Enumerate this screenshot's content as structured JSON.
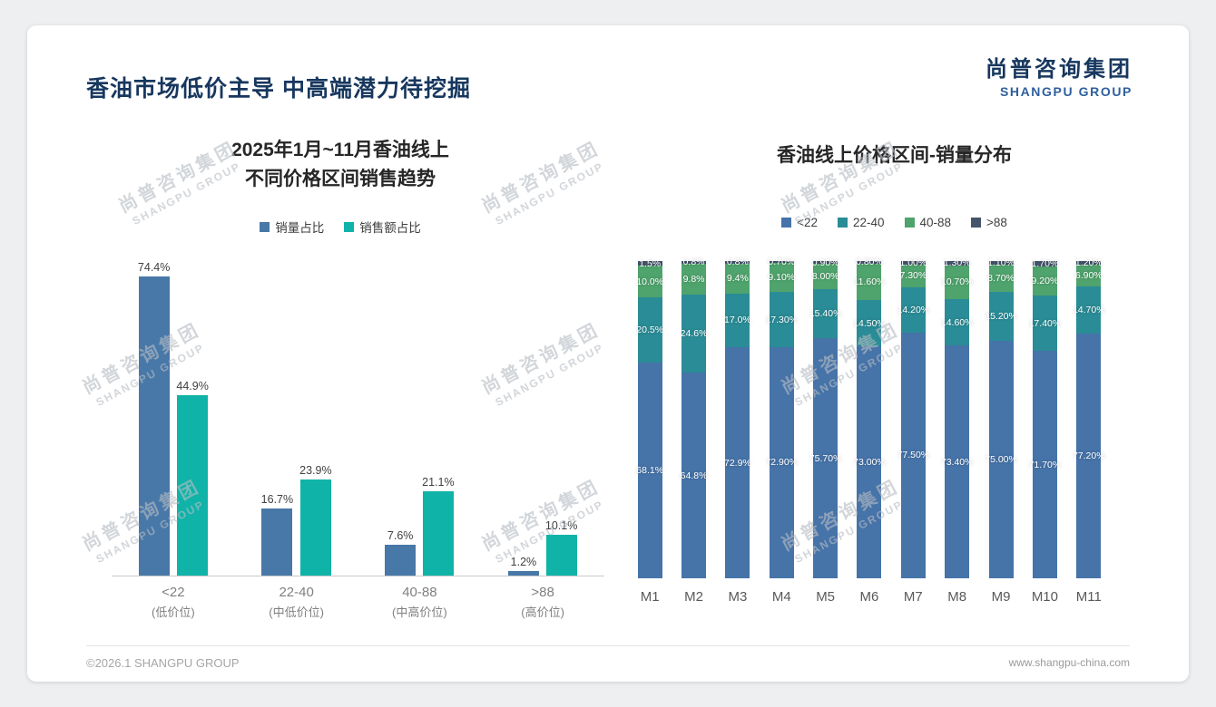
{
  "page": {
    "title": "香油市场低价主导 中高端潜力待挖掘",
    "logo": {
      "cn": "尚普咨询集团",
      "en": "SHANGPU GROUP"
    },
    "watermark": {
      "cn": "尚普咨询集团",
      "en": "SHANGPU GROUP"
    },
    "footer": {
      "left": "©2026.1 SHANGPU GROUP",
      "right": "www.shangpu-china.com"
    }
  },
  "chart_data": [
    {
      "type": "bar",
      "title": "2025年1月~11月香油线上 不同价格区间销售趋势",
      "title_lines": [
        "2025年1月~11月香油线上",
        "不同价格区间销售趋势"
      ],
      "categories": [
        [
          "<22",
          "(低价位)"
        ],
        [
          "22-40",
          "(中低价位)"
        ],
        [
          "40-88",
          "(中高价位)"
        ],
        [
          ">88",
          "(高价位)"
        ]
      ],
      "series": [
        {
          "name": "销量占比",
          "color": "#4878A8",
          "values": [
            74.4,
            16.7,
            7.6,
            1.2
          ],
          "labels": [
            "74.4%",
            "16.7%",
            "7.6%",
            "1.2%"
          ]
        },
        {
          "name": "销售额占比",
          "color": "#10B3A8",
          "values": [
            44.9,
            23.9,
            21.1,
            10.1
          ],
          "labels": [
            "44.9%",
            "23.9%",
            "21.1%",
            "10.1%"
          ]
        }
      ],
      "ylim": [
        0,
        80
      ],
      "grid": false,
      "legend_position": "top",
      "value_labels": true
    },
    {
      "type": "bar",
      "subtype": "stacked-100",
      "title": "香油线上价格区间-销量分布",
      "categories": [
        "M1",
        "M2",
        "M3",
        "M4",
        "M5",
        "M6",
        "M7",
        "M8",
        "M9",
        "M10",
        "M11"
      ],
      "series": [
        {
          "name": "<22",
          "color": "#4673A8",
          "values": [
            68.1,
            64.8,
            72.9,
            72.9,
            75.7,
            73.0,
            77.5,
            73.4,
            75.0,
            71.7,
            77.2
          ],
          "labels": [
            "68.1%",
            "64.8%",
            "72.9%",
            "72.90%",
            "75.70%",
            "73.00%",
            "77.50%",
            "73.40%",
            "75.00%",
            "71.70%",
            "77.20%"
          ]
        },
        {
          "name": "22-40",
          "color": "#2A8C96",
          "values": [
            20.5,
            24.6,
            17.0,
            17.3,
            15.4,
            14.5,
            14.2,
            14.6,
            15.2,
            17.4,
            14.7
          ],
          "labels": [
            "20.5%",
            "24.6%",
            "17.0%",
            "17.30%",
            "15.40%",
            "14.50%",
            "14.20%",
            "14.60%",
            "15.20%",
            "17.40%",
            "14.70%"
          ]
        },
        {
          "name": "40-88",
          "color": "#4FA36C",
          "values": [
            10.0,
            9.8,
            9.4,
            9.1,
            8.0,
            11.6,
            7.3,
            10.7,
            8.7,
            9.2,
            6.9
          ],
          "labels": [
            "10.0%",
            "9.8%",
            "9.4%",
            "9.10%",
            "8.00%",
            "11.60%",
            "7.30%",
            "10.70%",
            "8.70%",
            "9.20%",
            "6.90%"
          ]
        },
        {
          "name": ">88",
          "color": "#44546A",
          "values": [
            1.5,
            0.8,
            0.8,
            0.7,
            0.9,
            0.8,
            1.0,
            1.3,
            1.1,
            1.7,
            1.2
          ],
          "labels": [
            "1.5%",
            "0.8%",
            "0.8%",
            "0.70%",
            "0.90%",
            "0.80%",
            "1.00%",
            "1.30%",
            "1.10%",
            "1.70%",
            "1.20%"
          ]
        }
      ],
      "ylim": [
        0,
        100
      ],
      "grid": false,
      "legend_position": "top",
      "value_labels": true
    }
  ]
}
